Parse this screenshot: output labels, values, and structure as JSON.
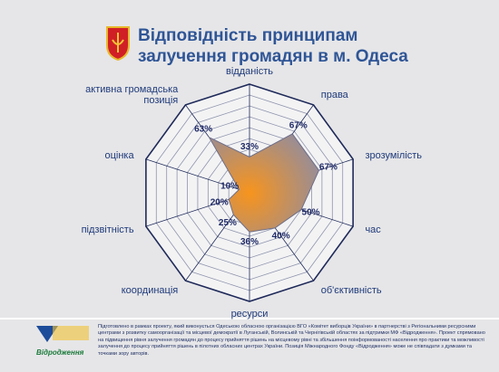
{
  "chart_data": {
    "type": "radar",
    "title": "Відповідність принципам залучення громадян в м. Одеса",
    "categories": [
      "відданість",
      "права",
      "зрозумілість",
      "час",
      "об'єктивність",
      "ресурси",
      "координація",
      "підзвітність",
      "оцінка",
      "активна громадська позиція"
    ],
    "values": [
      33,
      67,
      67,
      50,
      40,
      36,
      25,
      20,
      10,
      63
    ],
    "value_labels": [
      "33%",
      "67%",
      "67%",
      "50%",
      "40%",
      "36%",
      "25%",
      "20%",
      "10%",
      "63%"
    ],
    "rlim": [
      0,
      100
    ],
    "color": "#f7941d",
    "edge_color": "#8c8ca6"
  },
  "footer": {
    "text": "Підготовлено в рамках проекту, який виконується Одеською обласною організацією ВГО «Комітет виборців України» в партнерстві з Регіональними ресурсними центрами з розвитку самоорганізації та місцевої демократії в Луганській, Волинській та Чернігівській областях за підтримки МФ «Відродження». Проект спрямовано на підвищення рівня залучення громадян до процесу прийняття рішень на місцевому рівні та збільшення поінформованості населення про практики та можливості залучення до процесу прийняття рішень в пілотних обласних центрах України. Позиція Міжнародного Фонду «Відродження» може не співпадати з думками та точками зору авторів.",
    "logo_text": "Відродження"
  }
}
